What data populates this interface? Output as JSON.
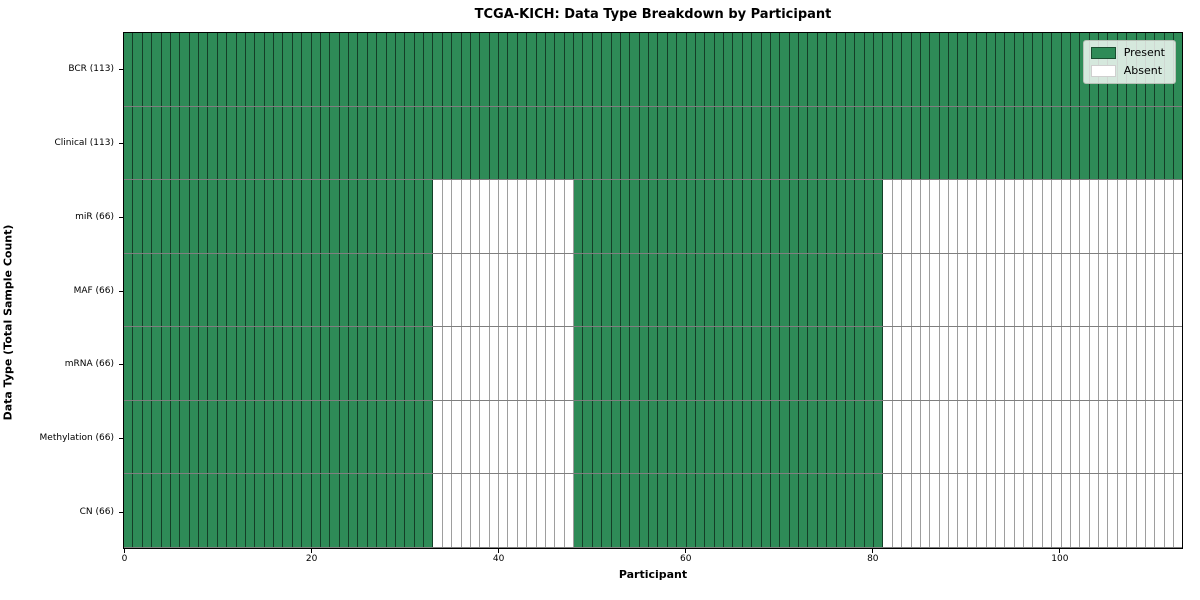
{
  "chart_data": {
    "type": "heatmap",
    "title": "TCGA-KICH: Data Type Breakdown by Participant",
    "xlabel": "Participant",
    "ylabel": "Data Type (Total Sample Count)",
    "x_range": [
      0,
      113
    ],
    "x_ticks": [
      0,
      20,
      40,
      60,
      80,
      100
    ],
    "n_participants": 113,
    "grid": false,
    "legend_position": "upper right",
    "colors": {
      "present": "#2e8b57",
      "absent": "#ffffff"
    },
    "legend": [
      {
        "label": "Present",
        "value": "present",
        "color": "#2e8b57"
      },
      {
        "label": "Absent",
        "value": "absent",
        "color": "#ffffff"
      }
    ],
    "rows": [
      {
        "data_type": "BCR",
        "label": "BCR (113)",
        "total_samples": 113,
        "present_ranges": [
          [
            0,
            113
          ]
        ],
        "absent_ranges": []
      },
      {
        "data_type": "Clinical",
        "label": "Clinical (113)",
        "total_samples": 113,
        "present_ranges": [
          [
            0,
            113
          ]
        ],
        "absent_ranges": []
      },
      {
        "data_type": "miR",
        "label": "miR (66)",
        "total_samples": 66,
        "present_ranges": [
          [
            0,
            33
          ],
          [
            48,
            81
          ]
        ],
        "absent_ranges": [
          [
            33,
            48
          ],
          [
            81,
            113
          ]
        ]
      },
      {
        "data_type": "MAF",
        "label": "MAF (66)",
        "total_samples": 66,
        "present_ranges": [
          [
            0,
            33
          ],
          [
            48,
            81
          ]
        ],
        "absent_ranges": [
          [
            33,
            48
          ],
          [
            81,
            113
          ]
        ]
      },
      {
        "data_type": "mRNA",
        "label": "mRNA (66)",
        "total_samples": 66,
        "present_ranges": [
          [
            0,
            33
          ],
          [
            48,
            81
          ]
        ],
        "absent_ranges": [
          [
            33,
            48
          ],
          [
            81,
            113
          ]
        ]
      },
      {
        "data_type": "Methylation",
        "label": "Methylation (66)",
        "total_samples": 66,
        "present_ranges": [
          [
            0,
            33
          ],
          [
            48,
            81
          ]
        ],
        "absent_ranges": [
          [
            33,
            48
          ],
          [
            81,
            113
          ]
        ]
      },
      {
        "data_type": "CN",
        "label": "CN (66)",
        "total_samples": 66,
        "present_ranges": [
          [
            0,
            33
          ],
          [
            48,
            81
          ]
        ],
        "absent_ranges": [
          [
            33,
            48
          ],
          [
            81,
            113
          ]
        ]
      }
    ]
  }
}
